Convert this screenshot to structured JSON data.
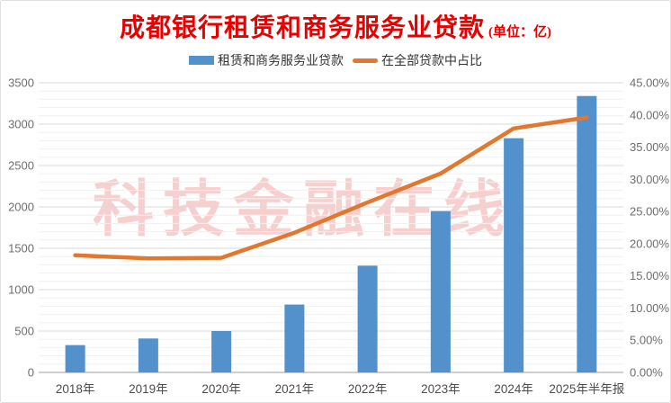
{
  "header": {
    "title": "成都银行租赁和商务服务业贷款",
    "unit_label": "(单位：亿)",
    "title_color": "#e60000"
  },
  "legend": {
    "items": [
      {
        "label": "租赁和商务服务业贷款",
        "swatch": "bar",
        "color": "#5291cb"
      },
      {
        "label": "在全部贷款中占比",
        "swatch": "line",
        "color": "#e2782f"
      }
    ]
  },
  "watermark": {
    "text": "科技金融在线",
    "color": "#f2a9a9"
  },
  "chart_data": {
    "type": "bar",
    "categories": [
      "2018年",
      "2019年",
      "2020年",
      "2021年",
      "2022年",
      "2023年",
      "2024年",
      "2025年半年报"
    ],
    "series": [
      {
        "name": "租赁和商务服务业贷款",
        "type": "bar",
        "axis": "left",
        "color": "#5291cb",
        "values": [
          330,
          410,
          500,
          820,
          1290,
          1950,
          2830,
          3340
        ]
      },
      {
        "name": "在全部贷款中占比",
        "type": "line",
        "axis": "right",
        "color": "#e2782f",
        "values": [
          18.2,
          17.7,
          17.8,
          21.7,
          26.4,
          30.9,
          37.9,
          39.6
        ]
      }
    ],
    "left_axis": {
      "min": 0,
      "max": 3500,
      "step": 500,
      "minor_step": 100,
      "tick_labels": [
        "3500",
        "3000",
        "2500",
        "2000",
        "1500",
        "1000",
        "500",
        "0"
      ]
    },
    "right_axis": {
      "min": 0,
      "max": 45,
      "step": 5,
      "tick_labels": [
        "45.00%",
        "40.00%",
        "35.00%",
        "30.00%",
        "25.00%",
        "20.00%",
        "15.00%",
        "10.00%",
        "5.00%",
        "0.00%"
      ]
    },
    "grid": true,
    "legend_position": "top",
    "title": "成都银行租赁和商务服务业贷款 (单位：亿)"
  }
}
